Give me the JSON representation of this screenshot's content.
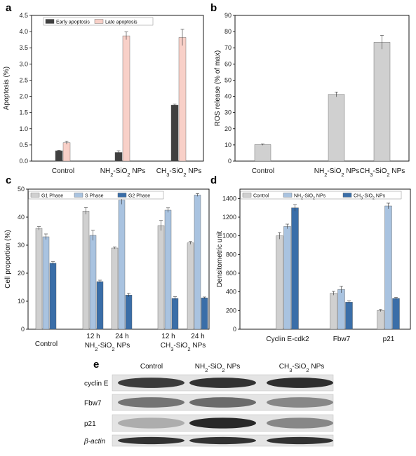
{
  "panels": {
    "a": "a",
    "b": "b",
    "c": "c",
    "d": "d",
    "e": "e"
  },
  "chart_data": [
    {
      "id": "a",
      "type": "bar",
      "ylabel": "Apoptosis (%)",
      "ylim": [
        0,
        4.5
      ],
      "yticks": [
        "0.0",
        "0.5",
        "1.0",
        "1.5",
        "2.0",
        "2.5",
        "3.0",
        "3.5",
        "4.0",
        "4.5"
      ],
      "categories": [
        "Control",
        "NH2-SiO2 NPs",
        "CH3-SiO2 NPs"
      ],
      "legend_position": "top",
      "series": [
        {
          "name": "Early apoptosis",
          "color": "#404040",
          "values": [
            0.32,
            0.27,
            1.73
          ],
          "errors": [
            0.02,
            0.05,
            0.03
          ]
        },
        {
          "name": "Late apoptosis",
          "color": "#f8d0c8",
          "values": [
            0.57,
            3.87,
            3.82
          ],
          "errors": [
            0.05,
            0.12,
            0.25
          ]
        }
      ]
    },
    {
      "id": "b",
      "type": "bar",
      "ylabel": "ROS release (% of max)",
      "ylim": [
        0,
        90
      ],
      "yticks": [
        "0",
        "10",
        "20",
        "30",
        "40",
        "50",
        "60",
        "70",
        "80",
        "90"
      ],
      "categories": [
        "Control",
        "NH2-SiO2 NPs",
        "CH3-SiO2 NPs"
      ],
      "series": [
        {
          "name": "",
          "color": "#d0d0d0",
          "values": [
            10.2,
            41.2,
            73.4
          ],
          "errors": [
            0.4,
            1.5,
            4.3
          ]
        }
      ]
    },
    {
      "id": "c",
      "type": "bar",
      "ylabel": "Cell proportion (%)",
      "ylim": [
        0,
        50
      ],
      "yticks": [
        "0",
        "10",
        "20",
        "30",
        "40",
        "50"
      ],
      "groups": [
        {
          "label": "Control",
          "sub": [
            ""
          ]
        },
        {
          "label": "NH2-SiO2 NPs",
          "sub": [
            "12 h",
            "24 h"
          ]
        },
        {
          "label": "CH3-SiO2 NPs",
          "sub": [
            "12 h",
            "24 h"
          ]
        }
      ],
      "legend_position": "top",
      "series": [
        {
          "name": "G1 Phase",
          "color": "#d0d0d0",
          "values": [
            36.0,
            42.2,
            29.0,
            37.0,
            30.8
          ],
          "errors": [
            0.6,
            1.2,
            0.3,
            1.8,
            0.5
          ]
        },
        {
          "name": "S Phase",
          "color": "#a9c3e0",
          "values": [
            33.0,
            33.5,
            46.1,
            42.5,
            47.9
          ],
          "errors": [
            1.0,
            1.8,
            1.5,
            0.8,
            0.5
          ]
        },
        {
          "name": "G2 Phase",
          "color": "#3a6ea8",
          "values": [
            23.6,
            17.0,
            12.2,
            11.0,
            11.2
          ],
          "errors": [
            0.5,
            0.5,
            0.6,
            0.6,
            0.3
          ]
        }
      ]
    },
    {
      "id": "d",
      "type": "bar",
      "ylabel": "Densitometric unit",
      "ylim": [
        0,
        1500
      ],
      "yticks": [
        "0",
        "200",
        "400",
        "600",
        "800",
        "1000",
        "1200",
        "1400"
      ],
      "categories": [
        "Cyclin E-cdk2",
        "Fbw7",
        "p21"
      ],
      "legend_position": "top",
      "series": [
        {
          "name": "Control",
          "color": "#d0d0d0",
          "values": [
            1000,
            385,
            200
          ],
          "errors": [
            35,
            20,
            12
          ]
        },
        {
          "name": "NH2-SiO2 NPs",
          "color": "#a9c3e0",
          "values": [
            1100,
            425,
            1320
          ],
          "errors": [
            25,
            35,
            30
          ]
        },
        {
          "name": "CH3-SiO2 NPs",
          "color": "#3a6ea8",
          "values": [
            1300,
            290,
            330
          ],
          "errors": [
            35,
            12,
            12
          ]
        }
      ]
    }
  ],
  "blot": {
    "columns": [
      "Control",
      "NH2-SiO2 NPs",
      "CH3-SiO2 NPs"
    ],
    "rows": [
      {
        "label": "cyclin E",
        "intensity": [
          0.85,
          0.9,
          0.92
        ]
      },
      {
        "label": "Fbw7",
        "intensity": [
          0.55,
          0.6,
          0.45
        ]
      },
      {
        "label": "p21",
        "intensity": [
          0.25,
          0.95,
          0.45
        ]
      },
      {
        "label": "β-actin",
        "intensity": [
          0.9,
          0.9,
          0.9
        ]
      }
    ]
  }
}
